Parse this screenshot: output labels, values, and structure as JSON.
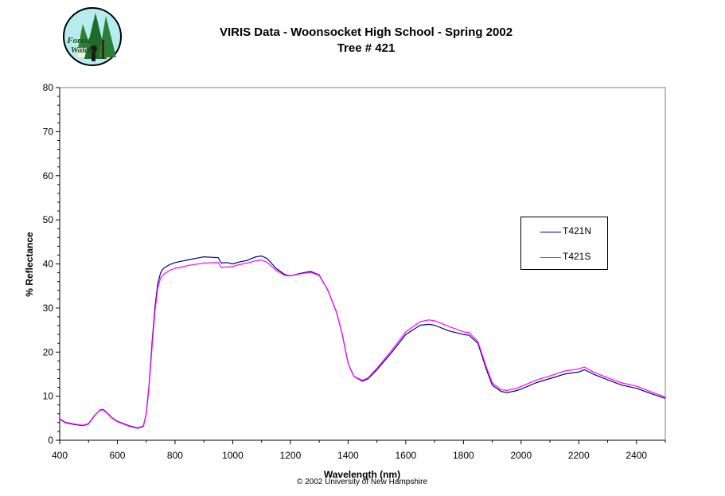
{
  "logo": {
    "text_line1": "Forest",
    "text_line2": "Watch"
  },
  "copyright": "© 2002 University of New Hampshire",
  "colors": {
    "T421N": "#000080",
    "T421S": "#ff00ff"
  },
  "chart_data": {
    "type": "line",
    "title": "VIRIS Data - Woonsocket High School - Spring 2002",
    "subtitle": "Tree # 421",
    "xlabel": "Wavelength (nm)",
    "ylabel": "% Reflectance",
    "xlim": [
      400,
      2500
    ],
    "ylim": [
      0,
      80
    ],
    "xticks": [
      400,
      600,
      800,
      1000,
      1200,
      1400,
      1600,
      1800,
      2000,
      2200,
      2400
    ],
    "yticks": [
      0,
      10,
      20,
      30,
      40,
      50,
      60,
      70,
      80
    ],
    "grid": false,
    "legend_position": "right",
    "series": [
      {
        "name": "T421N",
        "x": [
          400,
          420,
          450,
          480,
          500,
          520,
          540,
          550,
          560,
          580,
          600,
          640,
          670,
          690,
          700,
          710,
          720,
          730,
          740,
          750,
          760,
          780,
          800,
          850,
          900,
          950,
          960,
          980,
          1000,
          1020,
          1050,
          1080,
          1100,
          1120,
          1150,
          1180,
          1200,
          1230,
          1270,
          1300,
          1330,
          1360,
          1380,
          1400,
          1420,
          1450,
          1470,
          1500,
          1550,
          1600,
          1650,
          1680,
          1700,
          1750,
          1800,
          1820,
          1850,
          1880,
          1900,
          1930,
          1950,
          1980,
          2000,
          2050,
          2100,
          2150,
          2200,
          2220,
          2250,
          2300,
          2350,
          2400,
          2450,
          2500
        ],
        "y": [
          4.8,
          4.0,
          3.6,
          3.3,
          3.7,
          5.5,
          6.9,
          7.0,
          6.5,
          5.2,
          4.3,
          3.3,
          2.8,
          3.2,
          6.0,
          12.5,
          22.0,
          30.0,
          35.5,
          38.0,
          39.0,
          39.8,
          40.3,
          41.0,
          41.6,
          41.4,
          40.2,
          40.3,
          40.0,
          40.4,
          40.8,
          41.6,
          41.8,
          41.2,
          39.0,
          37.6,
          37.3,
          37.8,
          38.3,
          37.5,
          34.0,
          29.0,
          24.0,
          17.5,
          14.5,
          13.4,
          14.0,
          16.0,
          19.8,
          24.0,
          26.1,
          26.3,
          26.1,
          24.8,
          24.0,
          23.8,
          22.0,
          16.0,
          12.5,
          11.1,
          10.8,
          11.2,
          11.6,
          13.0,
          14.0,
          15.0,
          15.5,
          16.0,
          15.0,
          13.7,
          12.5,
          11.8,
          10.6,
          9.5
        ]
      },
      {
        "name": "T421S",
        "x": [
          400,
          420,
          450,
          480,
          500,
          520,
          540,
          550,
          560,
          580,
          600,
          640,
          670,
          690,
          700,
          710,
          720,
          730,
          740,
          750,
          760,
          780,
          800,
          850,
          900,
          950,
          960,
          980,
          1000,
          1020,
          1050,
          1080,
          1100,
          1120,
          1150,
          1180,
          1200,
          1230,
          1270,
          1300,
          1330,
          1360,
          1380,
          1400,
          1420,
          1450,
          1470,
          1500,
          1550,
          1600,
          1650,
          1680,
          1700,
          1750,
          1800,
          1820,
          1850,
          1880,
          1900,
          1930,
          1950,
          1980,
          2000,
          2050,
          2100,
          2150,
          2200,
          2220,
          2250,
          2300,
          2350,
          2400,
          2450,
          2500
        ],
        "y": [
          4.9,
          4.1,
          3.7,
          3.4,
          3.8,
          5.6,
          6.8,
          6.9,
          6.4,
          5.1,
          4.2,
          3.2,
          2.7,
          3.1,
          5.8,
          12.0,
          21.0,
          29.0,
          34.5,
          36.8,
          37.6,
          38.5,
          39.0,
          39.7,
          40.2,
          40.3,
          39.2,
          39.3,
          39.4,
          39.8,
          40.2,
          40.7,
          40.9,
          40.3,
          38.6,
          37.4,
          37.3,
          37.7,
          38.1,
          37.4,
          34.0,
          29.0,
          24.0,
          17.5,
          14.5,
          13.6,
          14.2,
          16.3,
          20.3,
          24.6,
          26.9,
          27.3,
          27.1,
          25.8,
          24.6,
          24.4,
          22.4,
          16.5,
          13.0,
          11.5,
          11.3,
          11.7,
          12.2,
          13.6,
          14.6,
          15.7,
          16.2,
          16.6,
          15.5,
          14.2,
          13.0,
          12.3,
          11.0,
          9.8
        ]
      }
    ]
  }
}
